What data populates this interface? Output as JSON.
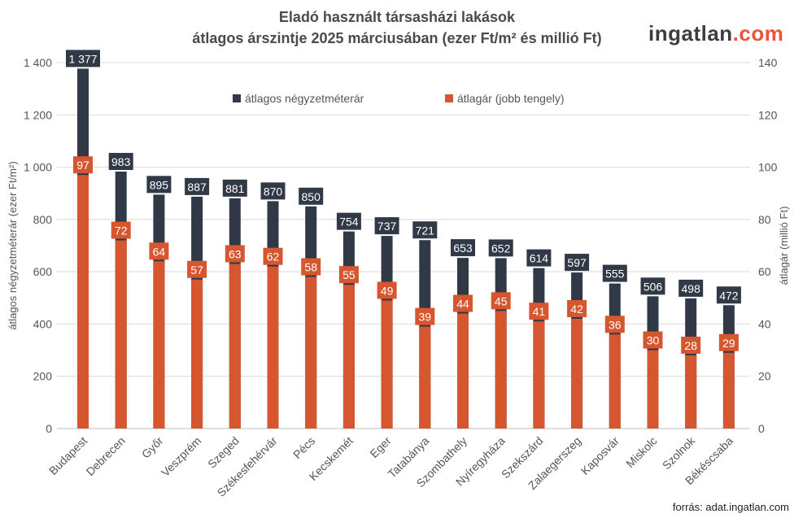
{
  "chart_data": {
    "type": "bar",
    "title": "Eladó használt társasházi lakások",
    "subtitle": "átlagos árszintje 2025 márciusában (ezer Ft/m² és millió Ft)",
    "ylabel_left": "átlagos négyzetméterár (ezer Ft/m²)",
    "ylabel_right": "átlagár (millió Ft)",
    "ylim_left": [
      0,
      1400
    ],
    "ylim_right": [
      0,
      140
    ],
    "yticks_left": [
      "0",
      "200",
      "400",
      "600",
      "800",
      "1 000",
      "1 200",
      "1 400"
    ],
    "yticks_right": [
      "0",
      "20",
      "40",
      "60",
      "80",
      "100",
      "120",
      "140"
    ],
    "grid": true,
    "legend_position": "top-center",
    "categories": [
      "Budapest",
      "Debrecen",
      "Győr",
      "Veszprém",
      "Szeged",
      "Székesfehérvár",
      "Pécs",
      "Kecskemét",
      "Eger",
      "Tatabánya",
      "Szombathely",
      "Nyíregyháza",
      "Szekszárd",
      "Zalaegerszeg",
      "Kaposvár",
      "Miskolc",
      "Szolnok",
      "Békéscsaba"
    ],
    "series": [
      {
        "name": "átlagos négyzetméterár",
        "axis": "left",
        "color": "#313846",
        "values": [
          1377,
          983,
          895,
          887,
          881,
          870,
          850,
          754,
          737,
          721,
          653,
          652,
          614,
          597,
          555,
          506,
          498,
          472
        ],
        "labels": [
          "1 377",
          "983",
          "895",
          "887",
          "881",
          "870",
          "850",
          "754",
          "737",
          "721",
          "653",
          "652",
          "614",
          "597",
          "555",
          "506",
          "498",
          "472"
        ]
      },
      {
        "name": "átlagár (jobb tengely)",
        "axis": "right",
        "color": "#d65630",
        "values": [
          97,
          72,
          64,
          57,
          63,
          62,
          58,
          55,
          49,
          39,
          44,
          45,
          41,
          42,
          36,
          30,
          28,
          29
        ]
      }
    ]
  },
  "logo": {
    "main": "ingatlan",
    "suffix": ".com"
  },
  "source": "forrás: adat.ingatlan.com"
}
